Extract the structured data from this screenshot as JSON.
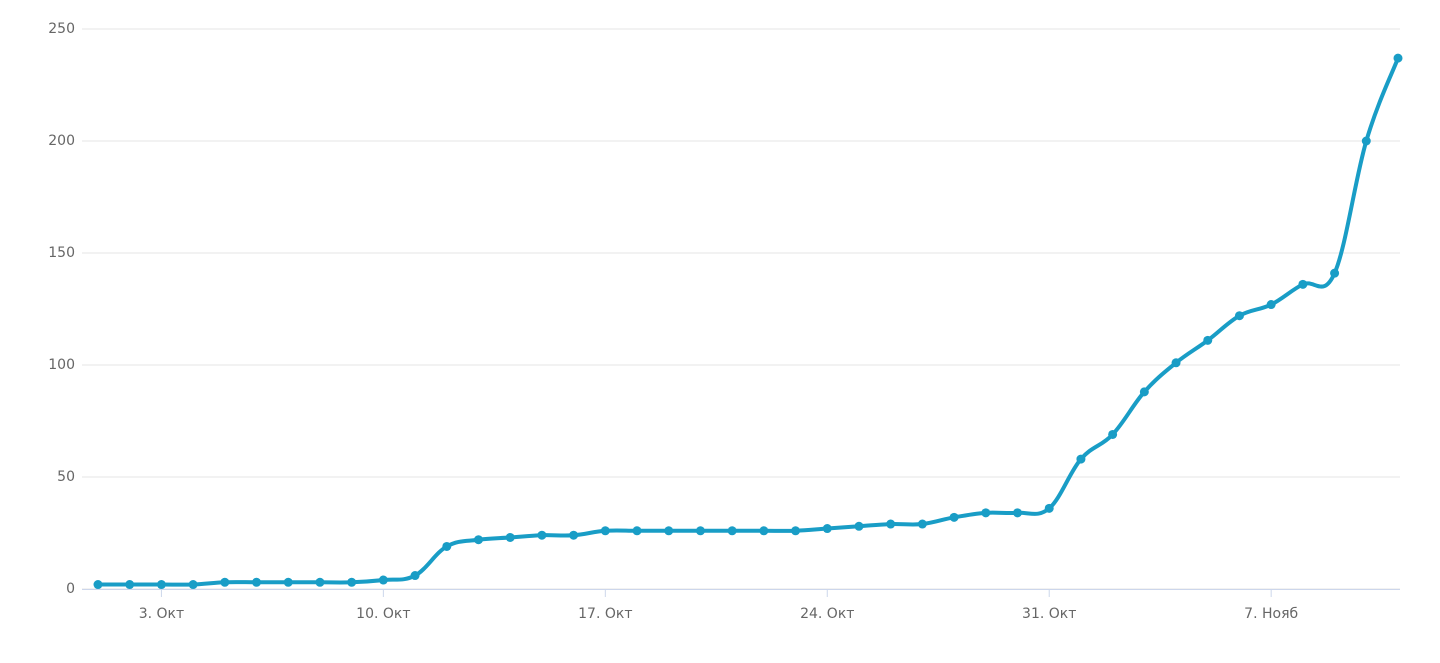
{
  "chart_data": {
    "type": "line",
    "categories": [
      null,
      null,
      "3. Окт",
      null,
      null,
      null,
      null,
      null,
      null,
      "10. Окт",
      null,
      null,
      null,
      null,
      null,
      null,
      "17. Окт",
      null,
      null,
      null,
      null,
      null,
      null,
      "24. Окт",
      null,
      null,
      null,
      null,
      null,
      null,
      "31. Окт",
      null,
      null,
      null,
      null,
      null,
      null,
      "7. Нояб",
      null,
      null,
      null,
      null
    ],
    "values": [
      2,
      2,
      2,
      2,
      3,
      3,
      3,
      3,
      3,
      4,
      6,
      19,
      22,
      23,
      24,
      24,
      26,
      26,
      26,
      26,
      26,
      26,
      26,
      27,
      28,
      29,
      29,
      32,
      34,
      34,
      36,
      58,
      69,
      88,
      101,
      111,
      122,
      127,
      136,
      141,
      200,
      237
    ],
    "color": "#199dc6",
    "ylim": [
      0,
      250
    ],
    "yticks": [
      0,
      50,
      100,
      150,
      200,
      250
    ],
    "grid": true
  }
}
